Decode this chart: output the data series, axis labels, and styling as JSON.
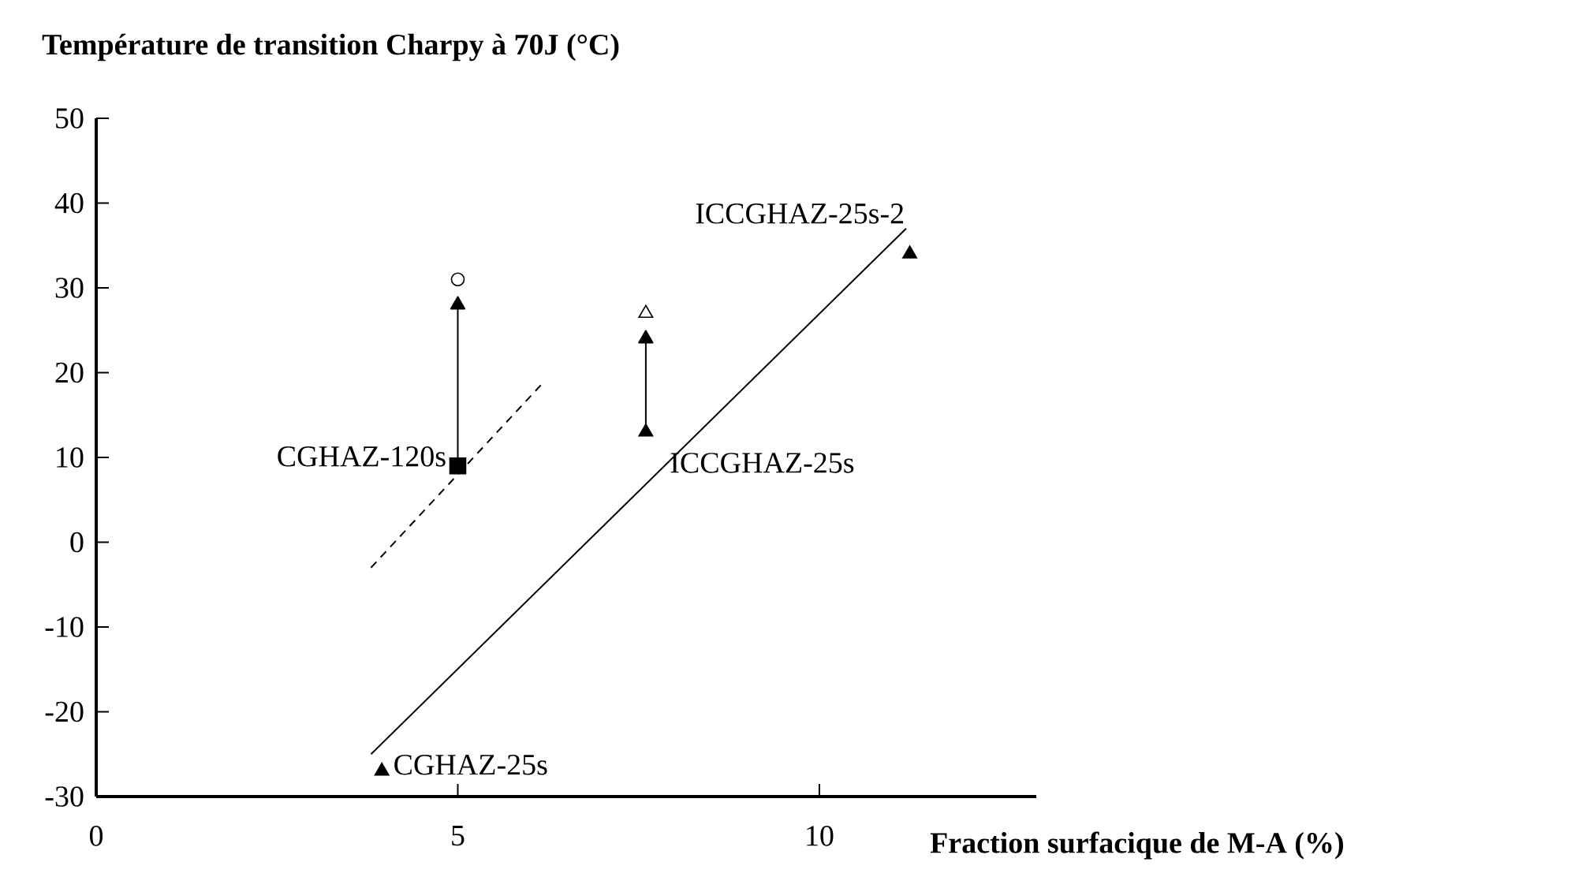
{
  "chart_data": {
    "type": "scatter",
    "ylabel": "Température de transition Charpy à 70J (°C)",
    "xlabel": "Fraction surfacique de M-A (%)",
    "xlim": [
      0,
      13
    ],
    "ylim": [
      -30,
      50
    ],
    "xticks": [
      0,
      5,
      10
    ],
    "yticks": [
      -30,
      -20,
      -10,
      0,
      10,
      20,
      30,
      40,
      50
    ],
    "grid": false,
    "series": [
      {
        "type": "line",
        "x": [
          3.8,
          11.2
        ],
        "values": [
          -25,
          37
        ],
        "color": "#000000",
        "line_style": "solid",
        "marker": "none"
      },
      {
        "type": "line",
        "x": [
          3.8,
          6.2
        ],
        "values": [
          -3,
          19
        ],
        "color": "#000000",
        "line_style": "dashed",
        "marker": "none"
      },
      {
        "type": "line",
        "x": [
          5,
          5
        ],
        "values": [
          9,
          28
        ],
        "color": "#000000",
        "line_style": "solid",
        "marker": "triangle"
      },
      {
        "type": "line",
        "x": [
          7.6,
          7.6
        ],
        "values": [
          13,
          24
        ],
        "color": "#000000",
        "line_style": "solid",
        "marker": "triangle"
      },
      {
        "type": "scatter",
        "x": [
          3.95,
          7.6,
          11.25
        ],
        "values": [
          -27,
          13,
          34
        ],
        "color": "#000000",
        "marker": "triangle"
      },
      {
        "type": "scatter",
        "x": [
          5
        ],
        "values": [
          9
        ],
        "color": "#000000",
        "marker": "square"
      },
      {
        "type": "scatter",
        "x": [
          5
        ],
        "values": [
          31
        ],
        "color": "#ffffff",
        "marker": "circle"
      },
      {
        "type": "scatter",
        "x": [
          7.6
        ],
        "values": [
          27
        ],
        "color": "#ffffff",
        "marker": "triangle"
      }
    ],
    "annotations": [
      {
        "text": "CGHAZ-120s",
        "x": 5,
        "y": 9
      },
      {
        "text": "CGHAZ-25s",
        "x": 3.95,
        "y": -27
      },
      {
        "text": "ICCGHAZ-25s",
        "x": 7.6,
        "y": 13
      },
      {
        "text": "ICCGHAZ-25s-2",
        "x": 11.25,
        "y": 34
      }
    ]
  }
}
